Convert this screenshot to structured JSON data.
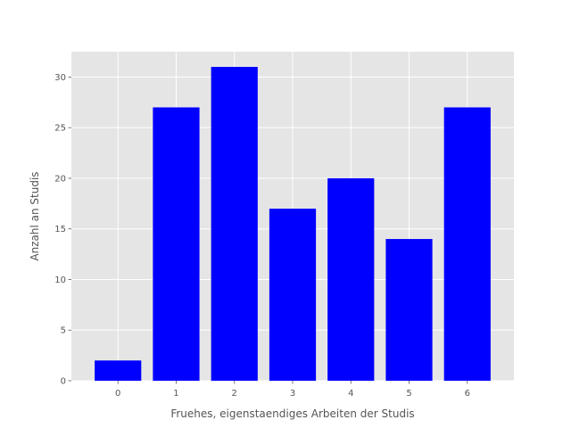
{
  "chart_data": {
    "type": "bar",
    "categories": [
      "0",
      "1",
      "2",
      "3",
      "4",
      "5",
      "6"
    ],
    "values": [
      2,
      27,
      31,
      17,
      20,
      14,
      27
    ],
    "title": "",
    "xlabel": "Fruehes, eigenstaendiges Arbeiten der Studis",
    "ylabel": "Anzahl an Studis",
    "ylim": [
      0,
      32.5
    ],
    "yticks": [
      0,
      5,
      10,
      15,
      20,
      25,
      30
    ],
    "grid": true,
    "colors": {
      "bar": "#0000ff",
      "plot_background": "#e5e5e5",
      "grid": "#ffffff",
      "text": "#555555"
    }
  }
}
